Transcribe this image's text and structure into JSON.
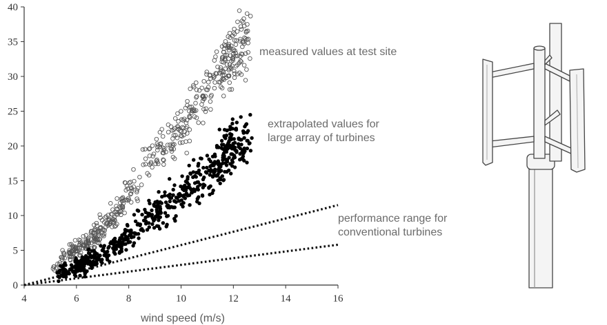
{
  "chart_data": {
    "type": "scatter",
    "xlabel": "wind speed (m/s)",
    "ylabel": "",
    "xlim": [
      4,
      16
    ],
    "ylim": [
      0,
      40
    ],
    "xticks": [
      "4",
      "6",
      "8",
      "10",
      "12",
      "14",
      "16"
    ],
    "yticks": [
      "0",
      "5",
      "10",
      "15",
      "20",
      "25",
      "30",
      "35",
      "40"
    ],
    "grid": false,
    "series": [
      {
        "name": "measured values at test site",
        "marker": "open-circle",
        "color": "#555555",
        "x_range": [
          5.1,
          12.7
        ],
        "curve": [
          [
            5.1,
            3.0
          ],
          [
            6.0,
            5.0
          ],
          [
            7.0,
            8.0
          ],
          [
            8.0,
            13.0
          ],
          [
            9.0,
            18.5
          ],
          [
            10.0,
            22.5
          ],
          [
            11.0,
            28.0
          ],
          [
            12.0,
            33.5
          ],
          [
            12.7,
            36.5
          ]
        ]
      },
      {
        "name": "extrapolated values for large array of turbines",
        "marker": "filled-circle",
        "color": "#000000",
        "x_range": [
          5.2,
          12.7
        ],
        "curve": [
          [
            5.2,
            1.5
          ],
          [
            6.0,
            2.5
          ],
          [
            7.0,
            4.5
          ],
          [
            8.0,
            7.0
          ],
          [
            9.0,
            10.0
          ],
          [
            10.0,
            13.0
          ],
          [
            11.0,
            16.0
          ],
          [
            12.0,
            20.0
          ],
          [
            12.7,
            22.0
          ]
        ]
      }
    ],
    "lines": [
      {
        "name": "performance range for conventional turbines (upper)",
        "style": "dotted",
        "color": "#111111",
        "x": [
          4,
          16
        ],
        "y": [
          0,
          11.5
        ]
      },
      {
        "name": "performance range for conventional turbines (lower)",
        "style": "dotted",
        "color": "#111111",
        "x": [
          4,
          16
        ],
        "y": [
          0,
          5.8
        ]
      }
    ],
    "annotations": [
      {
        "key": "measured",
        "lines": [
          "measured values at test site"
        ]
      },
      {
        "key": "extrapolated",
        "lines": [
          "extrapolated values for",
          "large array of turbines"
        ]
      },
      {
        "key": "conventional",
        "lines": [
          "performance range for",
          "conventional turbines"
        ]
      }
    ]
  },
  "illustration": {
    "icon": "vertical-axis-wind-turbine-icon"
  }
}
